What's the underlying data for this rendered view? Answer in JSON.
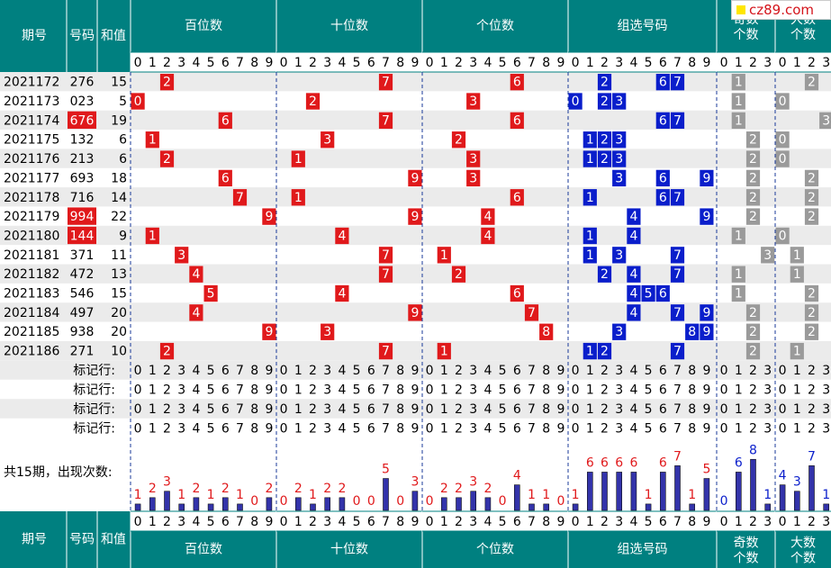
{
  "colors": {
    "header": "#008080",
    "red": "#e0191b",
    "blue": "#0a1ecb",
    "gray": "#9a9a9a",
    "bar": "#3333aa",
    "rowAlt": "#ebebeb"
  },
  "watermark": "cz89.com",
  "header": {
    "period": "期号",
    "number": "号码",
    "sum": "和值",
    "sections": [
      "百位数",
      "十位数",
      "个位数",
      "组选号码",
      "奇数个数",
      "大数个数"
    ]
  },
  "footer": {
    "period": "期号",
    "number": "号码",
    "sum": "和值",
    "sections": [
      "百位数",
      "十位数",
      "个位数",
      "组选号码",
      "奇数个数",
      "大数个数"
    ]
  },
  "mark_label": "标记行:",
  "count_label": "共15期，出现次数:",
  "chart_data": {
    "type": "table",
    "rows": [
      {
        "period": "2021172",
        "number": "276",
        "sum": "15",
        "digits": [
          2,
          7,
          6
        ],
        "group": [
          2,
          6,
          7
        ],
        "odd": 1,
        "big": 2,
        "hl": false
      },
      {
        "period": "2021173",
        "number": "023",
        "sum": "5",
        "digits": [
          0,
          2,
          3
        ],
        "group": [
          0,
          2,
          3
        ],
        "odd": 1,
        "big": 0,
        "hl": false
      },
      {
        "period": "2021174",
        "number": "676",
        "sum": "19",
        "digits": [
          6,
          7,
          6
        ],
        "group": [
          6,
          7
        ],
        "odd": 1,
        "big": 3,
        "hl": true
      },
      {
        "period": "2021175",
        "number": "132",
        "sum": "6",
        "digits": [
          1,
          3,
          2
        ],
        "group": [
          1,
          2,
          3
        ],
        "odd": 2,
        "big": 0,
        "hl": false
      },
      {
        "period": "2021176",
        "number": "213",
        "sum": "6",
        "digits": [
          2,
          1,
          3
        ],
        "group": [
          1,
          2,
          3
        ],
        "odd": 2,
        "big": 0,
        "hl": false
      },
      {
        "period": "2021177",
        "number": "693",
        "sum": "18",
        "digits": [
          6,
          9,
          3
        ],
        "group": [
          3,
          6,
          9
        ],
        "odd": 2,
        "big": 2,
        "hl": false
      },
      {
        "period": "2021178",
        "number": "716",
        "sum": "14",
        "digits": [
          7,
          1,
          6
        ],
        "group": [
          1,
          6,
          7
        ],
        "odd": 2,
        "big": 2,
        "hl": false
      },
      {
        "period": "2021179",
        "number": "994",
        "sum": "22",
        "digits": [
          9,
          9,
          4
        ],
        "group": [
          4,
          9
        ],
        "odd": 2,
        "big": 2,
        "hl": true
      },
      {
        "period": "2021180",
        "number": "144",
        "sum": "9",
        "digits": [
          1,
          4,
          4
        ],
        "group": [
          1,
          4
        ],
        "odd": 1,
        "big": 0,
        "hl": true
      },
      {
        "period": "2021181",
        "number": "371",
        "sum": "11",
        "digits": [
          3,
          7,
          1
        ],
        "group": [
          1,
          3,
          7
        ],
        "odd": 3,
        "big": 1,
        "hl": false
      },
      {
        "period": "2021182",
        "number": "472",
        "sum": "13",
        "digits": [
          4,
          7,
          2
        ],
        "group": [
          2,
          4,
          7
        ],
        "odd": 1,
        "big": 1,
        "hl": false
      },
      {
        "period": "2021183",
        "number": "546",
        "sum": "15",
        "digits": [
          5,
          4,
          6
        ],
        "group": [
          4,
          5,
          6
        ],
        "odd": 1,
        "big": 2,
        "hl": false
      },
      {
        "period": "2021184",
        "number": "497",
        "sum": "20",
        "digits": [
          4,
          9,
          7
        ],
        "group": [
          4,
          7,
          9
        ],
        "odd": 2,
        "big": 2,
        "hl": false
      },
      {
        "period": "2021185",
        "number": "938",
        "sum": "20",
        "digits": [
          9,
          3,
          8
        ],
        "group": [
          3,
          8,
          9
        ],
        "odd": 2,
        "big": 2,
        "hl": false
      },
      {
        "period": "2021186",
        "number": "271",
        "sum": "10",
        "digits": [
          2,
          7,
          1
        ],
        "group": [
          1,
          2,
          7
        ],
        "odd": 2,
        "big": 1,
        "hl": false
      }
    ],
    "counts": {
      "hundreds": [
        1,
        2,
        3,
        1,
        2,
        1,
        2,
        1,
        0,
        2
      ],
      "tens": [
        0,
        2,
        1,
        2,
        2,
        0,
        0,
        5,
        0,
        3
      ],
      "units": [
        0,
        2,
        2,
        3,
        2,
        0,
        4,
        1,
        1,
        0
      ],
      "group": [
        1,
        6,
        6,
        6,
        6,
        1,
        6,
        7,
        1,
        5
      ],
      "odd": [
        0,
        6,
        8,
        1
      ],
      "big": [
        4,
        3,
        7,
        1
      ]
    }
  }
}
